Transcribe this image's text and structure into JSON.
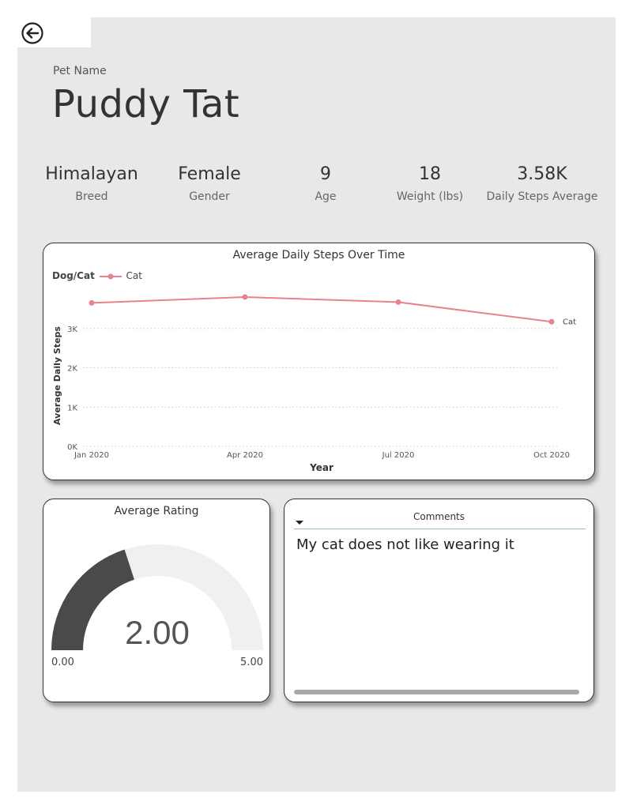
{
  "header": {
    "back_icon": "back-arrow-icon",
    "pet_name_label": "Pet Name",
    "pet_name": "Puddy Tat"
  },
  "stats": [
    {
      "value": "Himalayan",
      "label": "Breed"
    },
    {
      "value": "Female",
      "label": "Gender"
    },
    {
      "value": "9",
      "label": "Age"
    },
    {
      "value": "18",
      "label": "Weight (lbs)"
    },
    {
      "value": "3.58K",
      "label": "Daily Steps Average"
    }
  ],
  "steps_chart": {
    "legend_title": "Dog/Cat",
    "legend_item": "Cat"
  },
  "chart_data": [
    {
      "type": "line",
      "title": "Average Daily Steps Over Time",
      "xlabel": "Year",
      "ylabel": "Average Daily Steps",
      "categories": [
        "Jan 2020",
        "Apr 2020",
        "Jul 2020",
        "Oct 2020"
      ],
      "series": [
        {
          "name": "Cat",
          "values": [
            3650,
            3800,
            3670,
            3170
          ],
          "color": "#e8828f"
        }
      ],
      "ylim": [
        0,
        4000
      ],
      "yticks": [
        {
          "v": 0,
          "label": "0K"
        },
        {
          "v": 1000,
          "label": "1K"
        },
        {
          "v": 2000,
          "label": "2K"
        },
        {
          "v": 3000,
          "label": "3K"
        }
      ],
      "grid": true,
      "legend": "top-left"
    },
    {
      "type": "gauge",
      "title": "Average Rating",
      "value": 2.0,
      "value_label": "2.00",
      "min": 0,
      "max": 5,
      "min_label": "0.00",
      "max_label": "5.00",
      "fill_color": "#4a4a4a",
      "track_color": "#f0f0f0"
    }
  ],
  "comments": {
    "header": "Comments",
    "items": [
      "My cat does not like wearing it"
    ]
  },
  "colors": {
    "canvas": "#e8e8e8",
    "accent_line": "#e8828f"
  }
}
